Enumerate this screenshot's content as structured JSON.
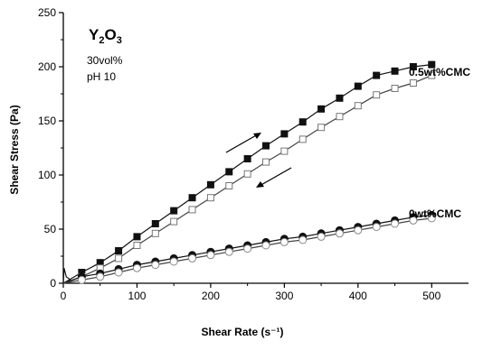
{
  "chart_data": {
    "type": "line",
    "title": "",
    "xlabel": "Shear Rate (s⁻¹)",
    "ylabel": "Shear Stress (Pa)",
    "xlim": [
      0,
      550
    ],
    "ylim": [
      0,
      250
    ],
    "xticks": [
      0,
      100,
      200,
      300,
      400,
      500
    ],
    "yticks": [
      0,
      50,
      100,
      150,
      200,
      250
    ],
    "grid": false,
    "annotations": {
      "material": "Y2O3",
      "conditions": [
        "30vol%",
        "pH 10"
      ]
    },
    "x": [
      0,
      25,
      50,
      75,
      100,
      125,
      150,
      175,
      200,
      225,
      250,
      275,
      300,
      325,
      350,
      375,
      400,
      425,
      450,
      475,
      500
    ],
    "series": [
      {
        "name": "0.5wt%CMC",
        "marker": "square",
        "up": [
          0,
          10,
          19,
          30,
          43,
          55,
          67,
          79,
          91,
          103,
          115,
          127,
          138,
          149,
          161,
          171,
          182,
          192,
          196,
          200,
          202
        ],
        "down": [
          0,
          6,
          14,
          23,
          35,
          46,
          57,
          68,
          79,
          90,
          101,
          112,
          122,
          133,
          144,
          154,
          164,
          174,
          180,
          185,
          192
        ]
      },
      {
        "name": "0wt%CMC",
        "marker": "circle",
        "up": [
          0,
          6,
          9,
          13,
          17,
          20,
          23,
          26,
          29,
          32,
          35,
          38,
          41,
          43,
          46,
          49,
          52,
          55,
          58,
          61,
          63
        ],
        "down": [
          0,
          3,
          6,
          10,
          14,
          17,
          20,
          23,
          26,
          29,
          32,
          35,
          38,
          40,
          43,
          46,
          49,
          52,
          55,
          58,
          60
        ]
      }
    ]
  }
}
